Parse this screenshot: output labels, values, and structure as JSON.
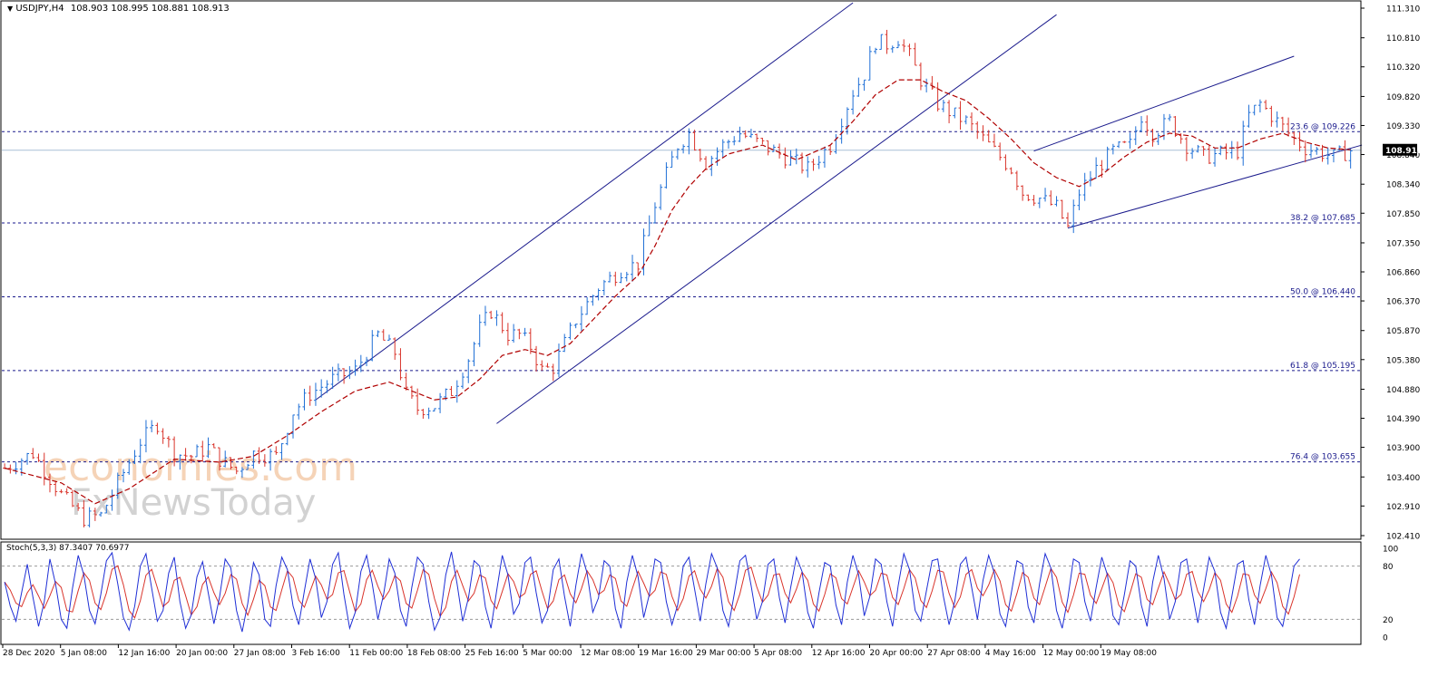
{
  "header": {
    "symbol_timeframe": "USDJPY,H4",
    "ohlc": "108.903 108.995 108.881 108.913",
    "stoch_label": "Stoch(5,3,3) 87.3407 70.6977"
  },
  "watermark": {
    "top": "economies.com",
    "bottom": "FxNewsToday"
  },
  "colors": {
    "bull": "#1f6fd6",
    "bear": "#d9342b",
    "ma": "#b00000",
    "channel": "#1a1a8c",
    "fib": "#1a1a8c",
    "stoch_main": "#1f2fd6",
    "stoch_signal": "#d9342b",
    "price_tag_bg": "#000000"
  },
  "chart_data": [
    {
      "type": "candlestick",
      "title": "USDJPY,H4",
      "x_tick_labels": [
        "28 Dec 2020",
        "5 Jan 08:00",
        "12 Jan 16:00",
        "20 Jan 00:00",
        "27 Jan 08:00",
        "3 Feb 16:00",
        "11 Feb 00:00",
        "18 Feb 08:00",
        "25 Feb 16:00",
        "5 Mar 00:00",
        "12 Mar 08:00",
        "19 Mar 16:00",
        "29 Mar 00:00",
        "5 Apr 08:00",
        "12 Apr 16:00",
        "20 Apr 00:00",
        "27 Apr 08:00",
        "4 May 16:00",
        "12 May 00:00",
        "19 May 08:00"
      ],
      "y_tick_labels": [
        "111.310",
        "110.810",
        "110.320",
        "109.820",
        "109.330",
        "108.840",
        "108.340",
        "107.850",
        "107.350",
        "106.860",
        "106.370",
        "105.870",
        "105.380",
        "104.880",
        "104.390",
        "103.900",
        "103.400",
        "102.910",
        "102.410"
      ],
      "ylim": [
        102.41,
        111.31
      ],
      "current_price": "108.913",
      "fib_levels": [
        {
          "label": "23.6 @ 109.226",
          "value": 109.226
        },
        {
          "label": "38.2 @ 107.685",
          "value": 107.685
        },
        {
          "label": "50.0 @ 106.440",
          "value": 106.44
        },
        {
          "label": "61.8 @ 105.195",
          "value": 105.195
        },
        {
          "label": "76.4 @ 103.655",
          "value": 103.655
        }
      ],
      "close_path": [
        [
          0,
          103.55
        ],
        [
          5,
          103.8
        ],
        [
          10,
          103.1
        ],
        [
          14,
          102.7
        ],
        [
          17,
          102.75
        ],
        [
          20,
          103.3
        ],
        [
          24,
          104.0
        ],
        [
          27,
          104.3
        ],
        [
          30,
          103.8
        ],
        [
          33,
          103.75
        ],
        [
          36,
          103.9
        ],
        [
          38,
          103.7
        ],
        [
          41,
          103.5
        ],
        [
          44,
          103.8
        ],
        [
          48,
          103.75
        ],
        [
          51,
          104.5
        ],
        [
          54,
          104.8
        ],
        [
          58,
          105.05
        ],
        [
          62,
          105.2
        ],
        [
          66,
          105.8
        ],
        [
          69,
          105.5
        ],
        [
          71,
          104.8
        ],
        [
          73,
          104.55
        ],
        [
          76,
          104.6
        ],
        [
          79,
          104.85
        ],
        [
          82,
          105.4
        ],
        [
          84,
          105.9
        ],
        [
          86,
          106.2
        ],
        [
          89,
          105.8
        ],
        [
          91,
          105.8
        ],
        [
          93,
          105.6
        ],
        [
          95,
          105.2
        ],
        [
          97,
          105.25
        ],
        [
          101,
          106.05
        ],
        [
          105,
          106.6
        ],
        [
          109,
          106.9
        ],
        [
          112,
          107.0
        ],
        [
          115,
          108.0
        ],
        [
          119,
          109.0
        ],
        [
          121,
          109.2
        ],
        [
          124,
          108.7
        ],
        [
          127,
          109.0
        ],
        [
          130,
          109.2
        ],
        [
          134,
          109.0
        ],
        [
          138,
          108.8
        ],
        [
          142,
          108.6
        ],
        [
          146,
          109.0
        ],
        [
          150,
          109.9
        ],
        [
          152,
          110.2
        ],
        [
          154,
          110.75
        ],
        [
          156,
          110.7
        ],
        [
          158,
          110.8
        ],
        [
          160,
          110.5
        ],
        [
          162,
          110.1
        ],
        [
          165,
          109.7
        ],
        [
          168,
          109.5
        ],
        [
          170,
          109.4
        ],
        [
          172,
          109.2
        ],
        [
          175,
          108.9
        ],
        [
          178,
          108.6
        ],
        [
          180,
          108.2
        ],
        [
          183,
          108.1
        ],
        [
          186,
          107.95
        ],
        [
          188,
          107.6
        ],
        [
          190,
          108.2
        ],
        [
          193,
          108.6
        ],
        [
          196,
          108.9
        ],
        [
          199,
          109.0
        ],
        [
          201,
          109.5
        ],
        [
          203,
          109.2
        ],
        [
          206,
          109.4
        ],
        [
          209,
          109.0
        ],
        [
          212,
          108.8
        ],
        [
          215,
          108.85
        ],
        [
          218,
          108.9
        ],
        [
          220,
          109.5
        ],
        [
          222,
          109.7
        ],
        [
          225,
          109.4
        ],
        [
          228,
          109.1
        ],
        [
          230,
          108.95
        ],
        [
          232,
          108.9
        ],
        [
          235,
          108.8
        ],
        [
          238,
          108.91
        ]
      ],
      "moving_average": [
        [
          0,
          103.55
        ],
        [
          10,
          103.3
        ],
        [
          16,
          102.95
        ],
        [
          22,
          103.2
        ],
        [
          30,
          103.7
        ],
        [
          38,
          103.65
        ],
        [
          44,
          103.75
        ],
        [
          50,
          104.1
        ],
        [
          56,
          104.5
        ],
        [
          62,
          104.85
        ],
        [
          68,
          105.0
        ],
        [
          72,
          104.85
        ],
        [
          76,
          104.7
        ],
        [
          80,
          104.75
        ],
        [
          84,
          105.05
        ],
        [
          88,
          105.45
        ],
        [
          92,
          105.55
        ],
        [
          96,
          105.45
        ],
        [
          100,
          105.65
        ],
        [
          104,
          106.05
        ],
        [
          108,
          106.45
        ],
        [
          112,
          106.8
        ],
        [
          115,
          107.3
        ],
        [
          118,
          107.9
        ],
        [
          121,
          108.3
        ],
        [
          124,
          108.6
        ],
        [
          128,
          108.85
        ],
        [
          134,
          109.0
        ],
        [
          140,
          108.75
        ],
        [
          146,
          109.0
        ],
        [
          150,
          109.4
        ],
        [
          154,
          109.85
        ],
        [
          158,
          110.1
        ],
        [
          162,
          110.1
        ],
        [
          166,
          109.9
        ],
        [
          170,
          109.75
        ],
        [
          174,
          109.45
        ],
        [
          178,
          109.1
        ],
        [
          182,
          108.7
        ],
        [
          186,
          108.45
        ],
        [
          190,
          108.3
        ],
        [
          194,
          108.5
        ],
        [
          198,
          108.8
        ],
        [
          202,
          109.05
        ],
        [
          206,
          109.2
        ],
        [
          210,
          109.15
        ],
        [
          214,
          108.95
        ],
        [
          218,
          108.95
        ],
        [
          222,
          109.1
        ],
        [
          226,
          109.2
        ],
        [
          230,
          109.05
        ],
        [
          234,
          108.95
        ],
        [
          238,
          108.92
        ]
      ],
      "channels": [
        {
          "line_a": [
            [
              55,
              104.7
            ],
            [
              150,
              111.4
            ]
          ],
          "line_b": [
            [
              87,
              104.3
            ],
            [
              186,
              111.2
            ]
          ]
        },
        {
          "line_a": [
            [
              182,
              108.9
            ],
            [
              228,
              110.5
            ]
          ],
          "line_b": [
            [
              188,
              107.6
            ],
            [
              240,
              109.0
            ]
          ]
        }
      ]
    },
    {
      "type": "line",
      "title": "Stoch(5,3,3)",
      "values_label": "87.3407 70.6977",
      "ylim": [
        0,
        100
      ],
      "y_tick_labels": [
        "100",
        "80",
        "20",
        "0"
      ],
      "level_lines": [
        80,
        20
      ],
      "series": [
        {
          "name": "main",
          "values": [
            62,
            35,
            18,
            50,
            82,
            45,
            12,
            40,
            88,
            60,
            20,
            10,
            55,
            92,
            70,
            30,
            15,
            48,
            86,
            95,
            60,
            22,
            8,
            35,
            80,
            94,
            55,
            18,
            30,
            72,
            90,
            40,
            10,
            25,
            68,
            85,
            50,
            15,
            45,
            88,
            78,
            30,
            6,
            38,
            84,
            70,
            20,
            12,
            58,
            90,
            76,
            35,
            14,
            52,
            88,
            66,
            22,
            40,
            82,
            95,
            48,
            10,
            28,
            74,
            92,
            60,
            20,
            48,
            88,
            72,
            30,
            12,
            56,
            90,
            82,
            40,
            8,
            22,
            70,
            96,
            60,
            18,
            44,
            86,
            80,
            34,
            10,
            52,
            92,
            70,
            26,
            38,
            84,
            90,
            50,
            16,
            30,
            76,
            88,
            46,
            12,
            58,
            94,
            72,
            28,
            44,
            86,
            80,
            32,
            10,
            62,
            92,
            68,
            22,
            48,
            88,
            84,
            40,
            14,
            36,
            80,
            90,
            54,
            18,
            60,
            94,
            78,
            30,
            12,
            48,
            86,
            92,
            58,
            20,
            40,
            82,
            88,
            44,
            16,
            56,
            90,
            74,
            28,
            10,
            50,
            84,
            80,
            36,
            14,
            62,
            92,
            70,
            24,
            46,
            88,
            82,
            40,
            12,
            58,
            94,
            76,
            30,
            18,
            52,
            86,
            88,
            46,
            14,
            40,
            82,
            90,
            56,
            20,
            64,
            92,
            72,
            26,
            12,
            50,
            86,
            82,
            34,
            16,
            60,
            94,
            78,
            30,
            10,
            44,
            88,
            84,
            40,
            18,
            56,
            90,
            70,
            24,
            14,
            48,
            86,
            80,
            36,
            12,
            62,
            92,
            66,
            20,
            40,
            84,
            88,
            50,
            16,
            54,
            90,
            74,
            28,
            10,
            46,
            82,
            86,
            42,
            14,
            58,
            92,
            70,
            22,
            12,
            44,
            80,
            88
          ]
        }
      ]
    }
  ]
}
